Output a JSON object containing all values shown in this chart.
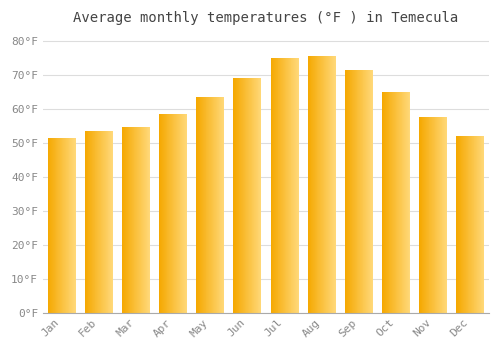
{
  "title": "Average monthly temperatures (°F ) in Temecula",
  "months": [
    "Jan",
    "Feb",
    "Mar",
    "Apr",
    "May",
    "Jun",
    "Jul",
    "Aug",
    "Sep",
    "Oct",
    "Nov",
    "Dec"
  ],
  "values": [
    51.5,
    53.5,
    54.5,
    58.5,
    63.5,
    69.0,
    75.0,
    75.5,
    71.5,
    65.0,
    57.5,
    52.0
  ],
  "bar_color_left": "#F5A800",
  "bar_color_right": "#FFD878",
  "yticks": [
    0,
    10,
    20,
    30,
    40,
    50,
    60,
    70,
    80
  ],
  "ytick_labels": [
    "0°F",
    "10°F",
    "20°F",
    "30°F",
    "40°F",
    "50°F",
    "60°F",
    "70°F",
    "80°F"
  ],
  "ylim": [
    0,
    83
  ],
  "background_color": "#FFFFFF",
  "grid_color": "#DDDDDD",
  "title_fontsize": 10,
  "tick_fontsize": 8,
  "bar_width": 0.75
}
